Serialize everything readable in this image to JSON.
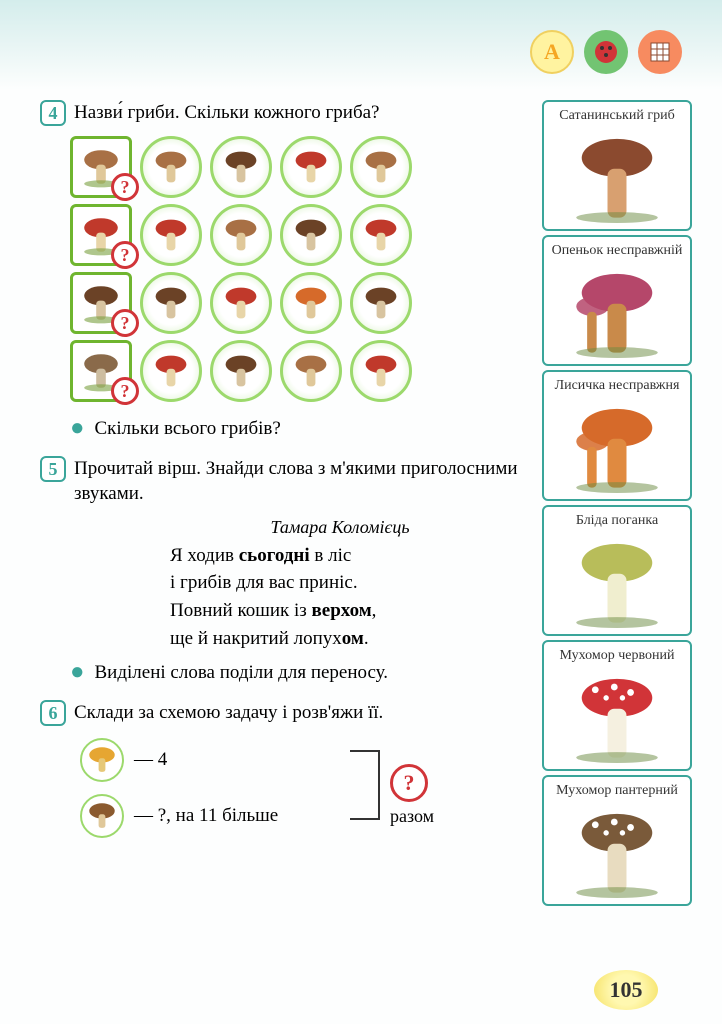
{
  "top": {
    "iconA": "A",
    "iconB": "●",
    "iconC": "▦"
  },
  "tasks": {
    "t4": {
      "num": "4",
      "text": "Назви́ гриби. Скільки кожного гриба?"
    },
    "t4b": "Скільки всього грибів?",
    "t5": {
      "num": "5",
      "text": "Прочитай вірш. Знайди слова з м'якими приголосними звуками."
    },
    "t5b": "Виділені слова поділи для переносу.",
    "t6": {
      "num": "6",
      "text": "Склади за схемою задачу і розв'яжи її."
    }
  },
  "poem": {
    "author": "Тамара Коломієць",
    "l1a": "Я ходив ",
    "l1b": "сьогодні",
    "l1c": " в ліс",
    "l2": "і грибів для вас приніс.",
    "l3a": "Повний кошик із ",
    "l3b": "верхом",
    "l3c": ",",
    "l4a": "ще й накритий лопух",
    "l4b": "ом",
    "l4c": "."
  },
  "scheme": {
    "v1": "— 4",
    "v2": "— ?, на 11 більше",
    "q": "?",
    "razom": "разом"
  },
  "sidebar": [
    {
      "label": "Сатанинський гриб",
      "cap": "#8b4a2f",
      "stem": "#d8a070",
      "extra": "saturn"
    },
    {
      "label": "Опеньок несправжній",
      "cap": "#b5476a",
      "stem": "#c98a4a",
      "extra": "cluster"
    },
    {
      "label": "Лисичка несправжня",
      "cap": "#d66a2a",
      "stem": "#e08a40",
      "extra": "fox"
    },
    {
      "label": "Бліда поганка",
      "cap": "#b8bd5a",
      "stem": "#f0eecf",
      "extra": "pale"
    },
    {
      "label": "Мухомор червоний",
      "cap": "#d13438",
      "stem": "#f5f0e0",
      "extra": "fly"
    },
    {
      "label": "Мухомор пантерний",
      "cap": "#7a5a3a",
      "stem": "#e8dcc0",
      "extra": "panther"
    }
  ],
  "grid": {
    "refs": [
      {
        "cap": "#a87045",
        "stem": "#e0c89a"
      },
      {
        "cap": "#c0392b",
        "stem": "#e8d5a8"
      },
      {
        "cap": "#6b4226",
        "stem": "#d8c4a0"
      },
      {
        "cap": "#8a6a4a",
        "stem": "#cdbda0"
      }
    ],
    "rows": [
      [
        {
          "cap": "#a87045",
          "stem": "#e0c89a"
        },
        {
          "cap": "#6b4226",
          "stem": "#d8c4a0"
        },
        {
          "cap": "#c0392b",
          "stem": "#e8d5a8"
        },
        {
          "cap": "#a87045",
          "stem": "#e0c89a"
        }
      ],
      [
        {
          "cap": "#c0392b",
          "stem": "#e8d5a8"
        },
        {
          "cap": "#a87045",
          "stem": "#e0c89a"
        },
        {
          "cap": "#6b4226",
          "stem": "#d8c4a0"
        },
        {
          "cap": "#c0392b",
          "stem": "#e8d5a8"
        }
      ],
      [
        {
          "cap": "#6b4226",
          "stem": "#d8c4a0"
        },
        {
          "cap": "#c0392b",
          "stem": "#e8d5a8"
        },
        {
          "cap": "#d66a2a",
          "stem": "#e0c89a"
        },
        {
          "cap": "#6b4226",
          "stem": "#d8c4a0"
        }
      ],
      [
        {
          "cap": "#c0392b",
          "stem": "#e8d5a8"
        },
        {
          "cap": "#6b4226",
          "stem": "#d8c4a0"
        },
        {
          "cap": "#a87045",
          "stem": "#e0c89a"
        },
        {
          "cap": "#c0392b",
          "stem": "#e8d5a8"
        }
      ]
    ],
    "q": "?"
  },
  "page": "105",
  "colors": {
    "accent": "#3aa59a",
    "green": "#6fb52f",
    "red": "#d13438"
  }
}
